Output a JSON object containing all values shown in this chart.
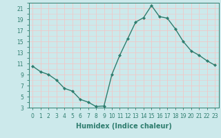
{
  "xlabel": "Humidex (Indice chaleur)",
  "x_values": [
    0,
    1,
    2,
    3,
    4,
    5,
    6,
    7,
    8,
    9,
    10,
    11,
    12,
    13,
    14,
    15,
    16,
    17,
    18,
    19,
    20,
    21,
    22,
    23
  ],
  "y_values": [
    10.5,
    9.5,
    9.0,
    8.0,
    6.5,
    6.0,
    4.5,
    4.0,
    3.2,
    3.3,
    9.0,
    12.5,
    15.5,
    18.5,
    19.3,
    21.5,
    19.5,
    19.2,
    17.3,
    15.0,
    13.3,
    12.5,
    11.5,
    10.7
  ],
  "line_color": "#2e7d6e",
  "marker": "D",
  "marker_size": 2.2,
  "background_color": "#cce9eb",
  "grid_color": "#f0c8c8",
  "ylim": [
    3,
    22
  ],
  "xlim": [
    -0.5,
    23.5
  ],
  "yticks": [
    3,
    5,
    7,
    9,
    11,
    13,
    15,
    17,
    19,
    21
  ],
  "xticks": [
    0,
    1,
    2,
    3,
    4,
    5,
    6,
    7,
    8,
    9,
    10,
    11,
    12,
    13,
    14,
    15,
    16,
    17,
    18,
    19,
    20,
    21,
    22,
    23
  ],
  "tick_color": "#2e7d6e",
  "tick_fontsize": 5.5,
  "xlabel_fontsize": 7.0,
  "line_width": 1.0
}
